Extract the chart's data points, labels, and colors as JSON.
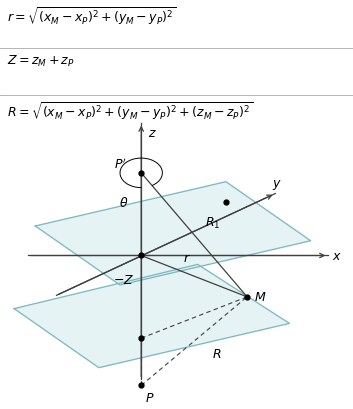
{
  "fig_width": 3.53,
  "fig_height": 4.1,
  "dpi": 100,
  "bg_color": "#ffffff",
  "axis_color": "#404040",
  "plane_edge_color": "#80b8c0",
  "plane_fill_color": "#d0eaec",
  "line_color": "#404040",
  "dashed_color": "#404040",
  "eq_fontsize": 9,
  "label_fontsize": 9,
  "eq1": "r = \\sqrt{(x_M - x_P)^2 + (y_M - y_P)^2}",
  "eq2": "Z = z_M + z_P",
  "eq3": "R = \\sqrt{(x_M - x_P)^2 + (y_M - y_P)^2 + (z_M - z_P)^2}"
}
